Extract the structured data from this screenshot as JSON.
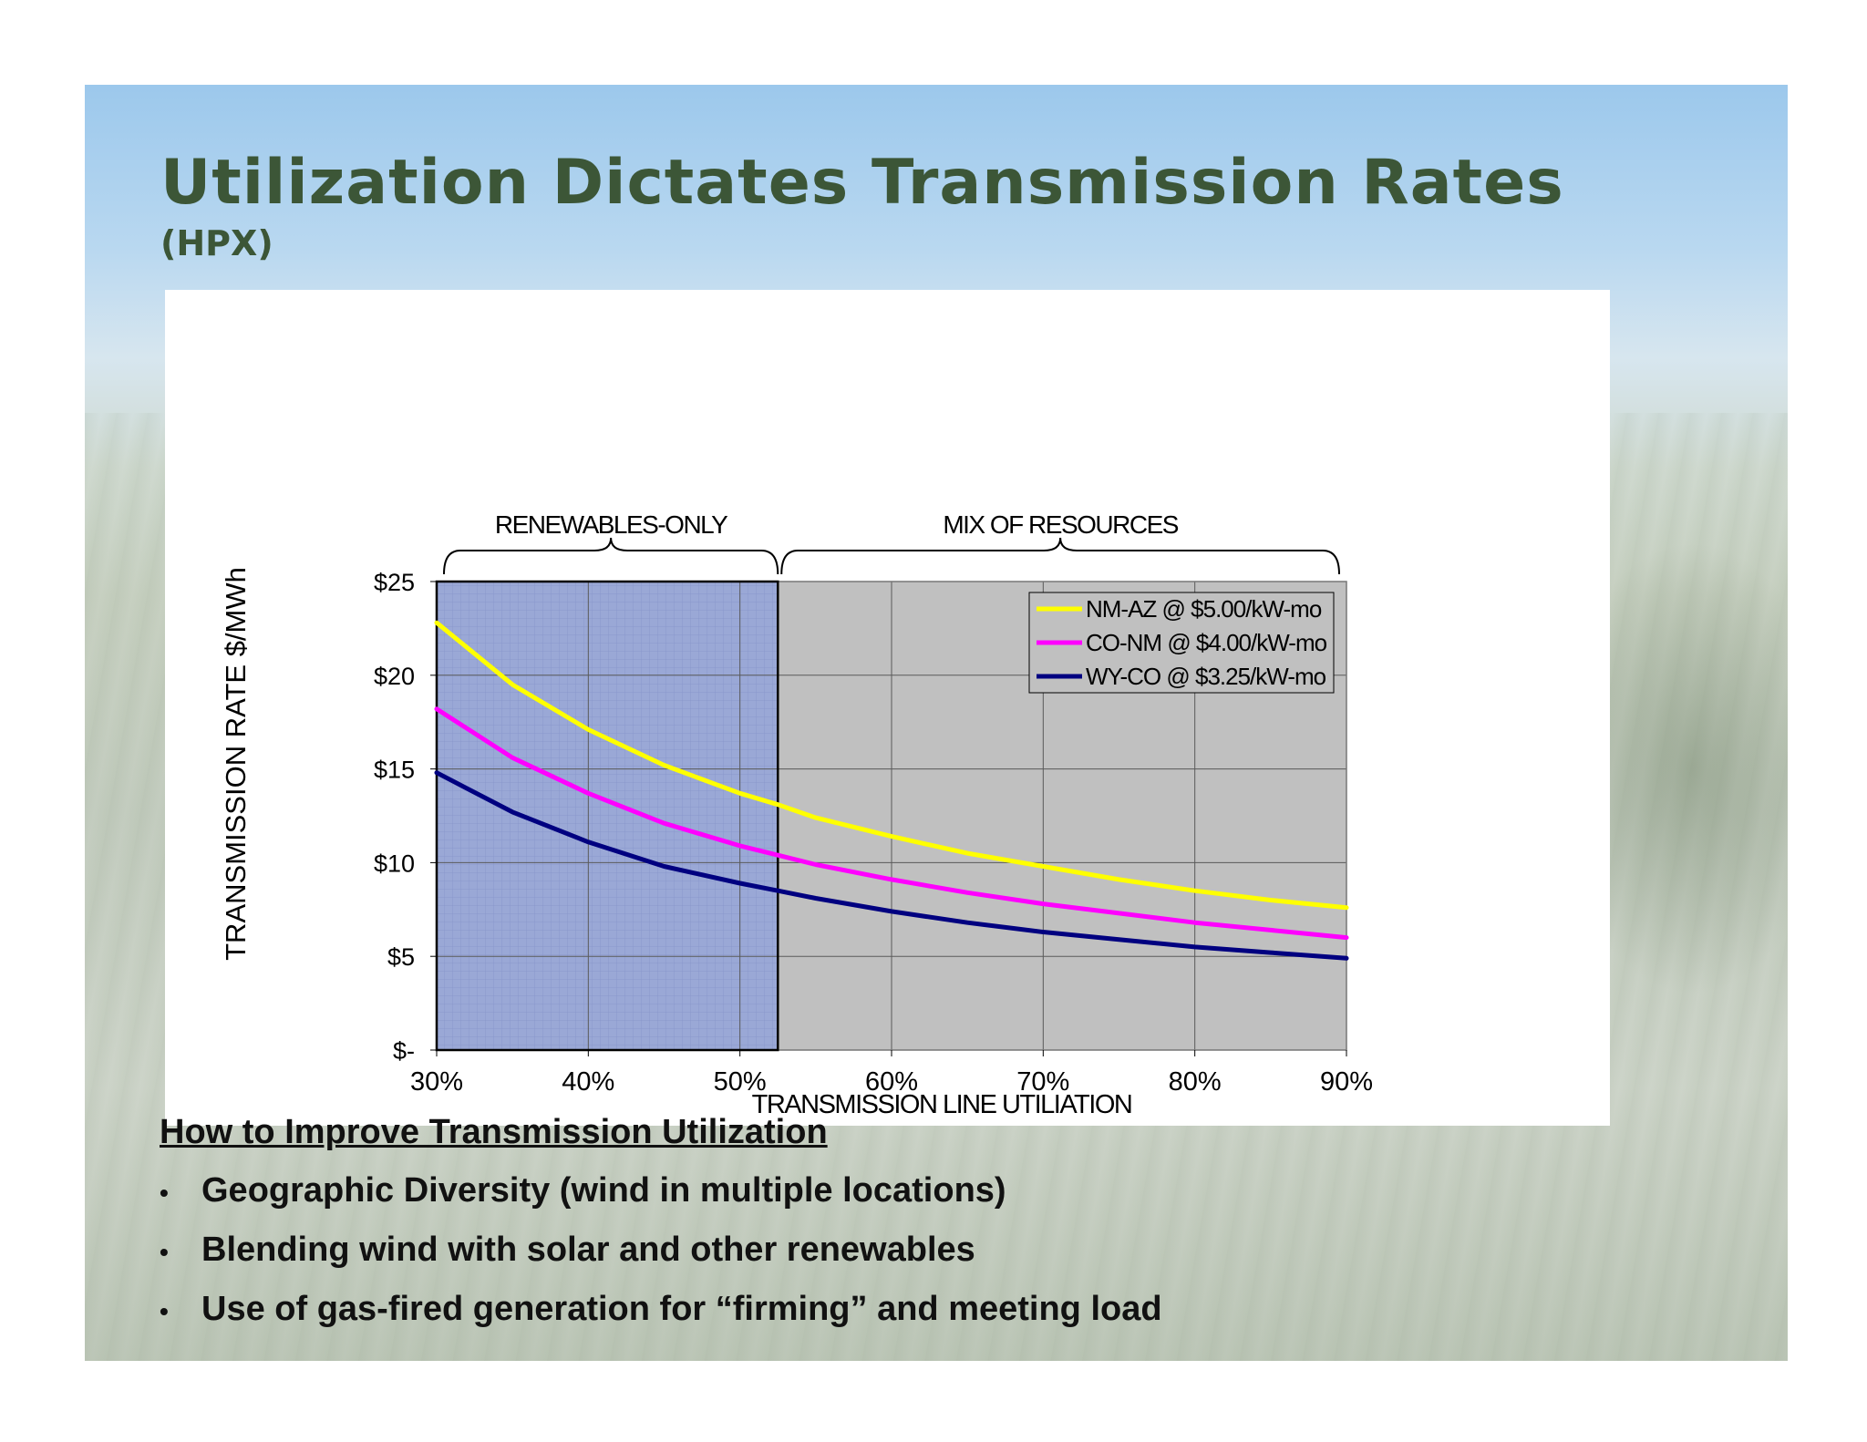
{
  "slide": {
    "title": "Utilization Dictates Transmission Rates",
    "subtitle": "(HPX)",
    "improve_heading": "How to Improve Transmission Utilization",
    "bullets": [
      "Geographic Diversity (wind in multiple locations)",
      "Blending wind with solar and other renewables",
      "Use of gas-fired generation for “firming” and meeting load"
    ],
    "bullet_glyph": "•"
  },
  "chart_data": {
    "type": "line",
    "title": "",
    "xlabel": "TRANSMISSION LINE UTILIATION",
    "ylabel": "TRANSMISSION RATE $/MWh",
    "xlim": [
      0.3,
      0.9
    ],
    "ylim": [
      0,
      25
    ],
    "x_ticks": [
      "30%",
      "40%",
      "50%",
      "60%",
      "70%",
      "80%",
      "90%"
    ],
    "y_ticks": [
      "$-",
      "$5",
      "$10",
      "$15",
      "$20",
      "$25"
    ],
    "grid": true,
    "legend_position": "top-right",
    "regions": [
      {
        "label": "RENEWABLES-ONLY",
        "x_range": [
          0.3,
          0.525
        ],
        "color": "#9aa8d6"
      },
      {
        "label": "MIX OF RESOURCES",
        "x_range": [
          0.525,
          0.9
        ],
        "color": "#c0c0c0"
      }
    ],
    "x": [
      0.3,
      0.35,
      0.4,
      0.45,
      0.5,
      0.525,
      0.55,
      0.6,
      0.65,
      0.7,
      0.75,
      0.8,
      0.85,
      0.9
    ],
    "series": [
      {
        "name": "NM-AZ @ $5.00/kW-mo",
        "color": "#ffff00",
        "values": [
          22.8,
          19.5,
          17.1,
          15.2,
          13.7,
          13.1,
          12.4,
          11.4,
          10.5,
          9.8,
          9.1,
          8.5,
          8.0,
          7.6
        ]
      },
      {
        "name": "CO-NM @ $4.00/kW-mo",
        "color": "#ff00ff",
        "values": [
          18.2,
          15.6,
          13.7,
          12.1,
          10.9,
          10.4,
          9.9,
          9.1,
          8.4,
          7.8,
          7.3,
          6.8,
          6.4,
          6.0
        ]
      },
      {
        "name": "WY-CO @ $3.25/kW-mo",
        "color": "#000080",
        "values": [
          14.8,
          12.7,
          11.1,
          9.8,
          8.9,
          8.5,
          8.1,
          7.4,
          6.8,
          6.3,
          5.9,
          5.5,
          5.2,
          4.9
        ]
      }
    ]
  }
}
